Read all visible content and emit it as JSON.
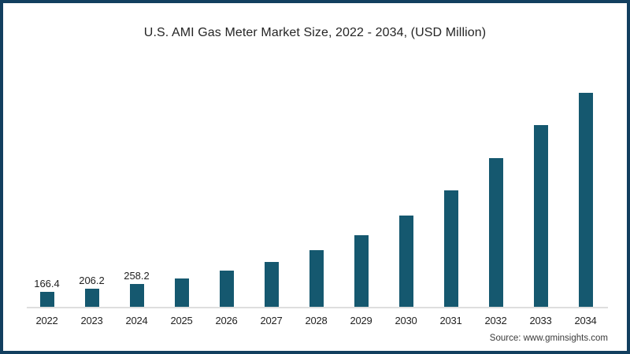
{
  "title": "U.S. AMI Gas Meter Market Size, 2022 - 2034, (USD Million)",
  "source": "Source: www.gminsights.com",
  "colors": {
    "bar": "#15586F",
    "frame_border": "#123F5F",
    "axis_line": "#DEDEDE",
    "title_text": "#252525"
  },
  "chart_data": {
    "type": "bar",
    "title": "U.S. AMI Gas Meter Market Size, 2022 - 2034, (USD Million)",
    "unit": "USD Million",
    "categories": [
      "2022",
      "2023",
      "2024",
      "2025",
      "2026",
      "2027",
      "2028",
      "2029",
      "2030",
      "2031",
      "2032",
      "2033",
      "2034"
    ],
    "values": [
      166.4,
      206.2,
      258.2,
      315,
      405,
      505,
      635,
      800,
      1020,
      1305,
      1670,
      2035,
      2400
    ],
    "data_labels": [
      "166.4",
      "206.2",
      "258.2",
      "",
      "",
      "",
      "",
      "",
      "",
      "",
      "",
      "",
      ""
    ],
    "xlabel": "",
    "ylabel": "",
    "ylim": [
      0,
      2400
    ],
    "grid": false,
    "legend": false
  }
}
